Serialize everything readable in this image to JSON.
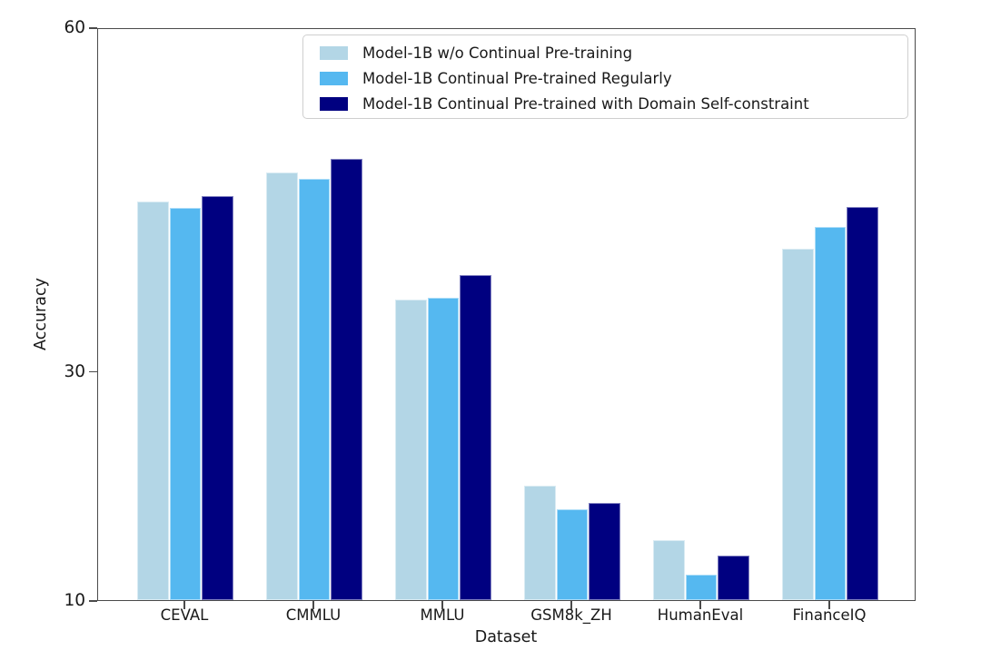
{
  "figure": {
    "background": "#ffffff"
  },
  "chart_data": {
    "type": "bar",
    "title": "",
    "xlabel": "Dataset",
    "ylabel": "Accuracy",
    "categories": [
      "CEVAL",
      "CMMLU",
      "MMLU",
      "GSM8k_ZH",
      "HumanEval",
      "FinanceIQ"
    ],
    "series": [
      {
        "name": "Model-1B w/o Continual Pre-training",
        "color": "#b3d6e6",
        "values": [
          44.8,
          47.3,
          36.2,
          20.0,
          15.2,
          40.7
        ]
      },
      {
        "name": "Model-1B Continual Pre-trained Regularly",
        "color": "#55b8f0",
        "values": [
          44.2,
          46.8,
          36.4,
          17.9,
          12.2,
          42.6
        ]
      },
      {
        "name": "Model-1B Continual Pre-trained with Domain Self-constraint",
        "color": "#000080",
        "values": [
          45.3,
          48.5,
          38.4,
          18.5,
          13.9,
          44.3
        ]
      }
    ],
    "ylim": [
      10,
      60
    ],
    "yticks": [
      10,
      30,
      60
    ],
    "grid": false,
    "legend_position": "upper right inside",
    "bar_edge_color": "rgba(255,255,255,0.5)",
    "axis_color": "#4a4a4a"
  }
}
